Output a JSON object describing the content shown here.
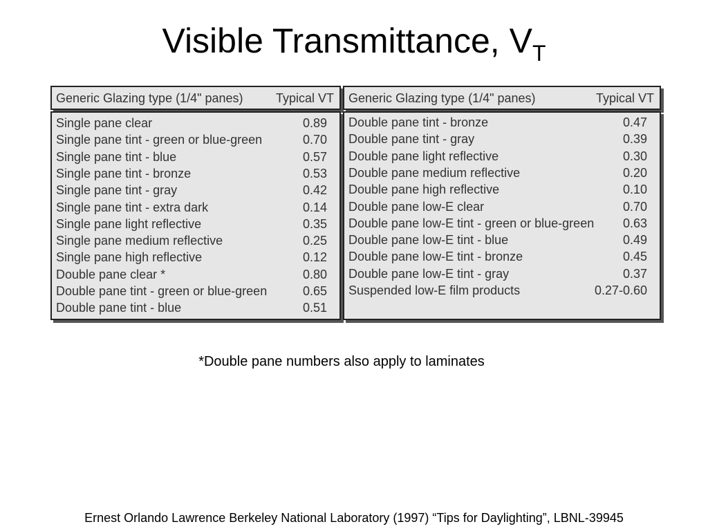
{
  "title": {
    "main": "Visible Transmittance, V",
    "subscript": "T"
  },
  "tables": [
    {
      "header": [
        "Generic Glazing type (1/4\" panes)",
        "Typical VT"
      ],
      "rows": [
        [
          "Single pane clear",
          "0.89"
        ],
        [
          "Single pane tint - green or blue-green",
          "0.70"
        ],
        [
          "Single pane tint - blue",
          "0.57"
        ],
        [
          "Single pane tint - bronze",
          "0.53"
        ],
        [
          "Single pane tint - gray",
          "0.42"
        ],
        [
          "Single pane tint - extra dark",
          "0.14"
        ],
        [
          "Single pane light reflective",
          "0.35"
        ],
        [
          "Single pane medium reflective",
          "0.25"
        ],
        [
          "Single pane high reflective",
          "0.12"
        ],
        [
          "Double pane clear *",
          "0.80"
        ],
        [
          "Double pane tint - green or blue-green",
          "0.65"
        ],
        [
          "Double pane tint - blue",
          "0.51"
        ]
      ]
    },
    {
      "header": [
        "Generic Glazing type (1/4\" panes)",
        "Typical VT"
      ],
      "rows": [
        [
          "Double pane tint - bronze",
          "0.47"
        ],
        [
          "Double pane tint - gray",
          "0.39"
        ],
        [
          "Double pane light reflective",
          "0.30"
        ],
        [
          "Double pane medium reflective",
          "0.20"
        ],
        [
          "Double pane high reflective",
          "0.10"
        ],
        [
          "Double pane low-E clear",
          "0.70"
        ],
        [
          "Double pane low-E tint - green or blue-green",
          "0.63"
        ],
        [
          "Double pane low-E tint - blue",
          "0.49"
        ],
        [
          "Double pane low-E tint - bronze",
          "0.45"
        ],
        [
          "Double pane low-E tint - gray",
          "0.37"
        ],
        [
          "Suspended low-E film products",
          "0.27-0.60"
        ]
      ]
    }
  ],
  "footnote": "*Double pane numbers also apply to laminates",
  "citation": "Ernest Orlando Lawrence Berkeley National Laboratory (1997) “Tips for Daylighting”, LBNL-39945"
}
